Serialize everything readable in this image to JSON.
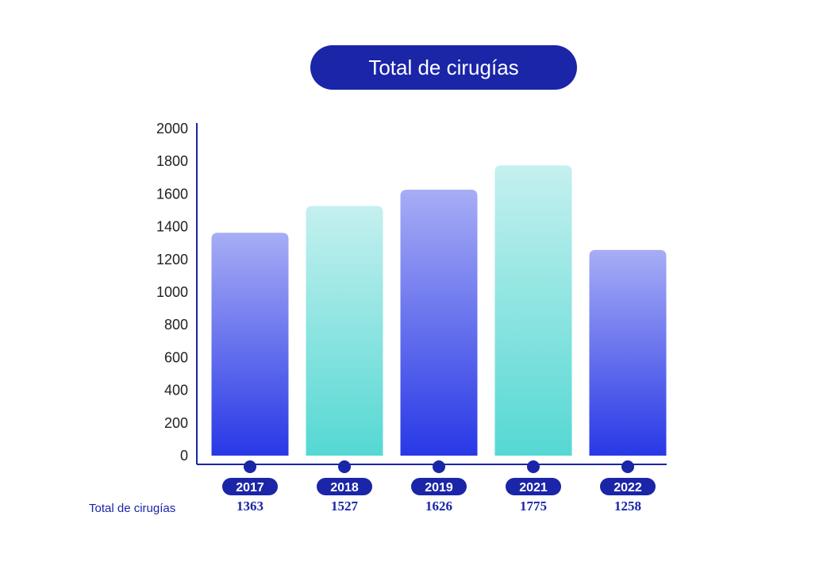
{
  "chart_data": {
    "type": "bar",
    "title": "Total de cirugías",
    "categories": [
      "2017",
      "2018",
      "2019",
      "2021",
      "2022"
    ],
    "series": [
      {
        "name": "Total de cirugías",
        "values": [
          1363,
          1527,
          1626,
          1775,
          1258
        ]
      }
    ],
    "value_labels": [
      "1363",
      "1527",
      "1626",
      "1775",
      "1258"
    ],
    "yticks": [
      "0",
      "200",
      "400",
      "600",
      "800",
      "1000",
      "1200",
      "1400",
      "1600",
      "1800",
      "2000"
    ],
    "ylim": [
      0,
      2000
    ],
    "grid": false,
    "row_label": "Total de cirugías",
    "colors": {
      "title_bg": "#1a25a8",
      "axis": "#1a25a8",
      "blue_top": "#a7adf5",
      "blue_bottom": "#2838e6",
      "teal_top": "#c4f0ef",
      "teal_bottom": "#55d8d3",
      "bar_style_sequence": [
        "blue",
        "teal",
        "blue",
        "teal",
        "blue"
      ]
    }
  }
}
